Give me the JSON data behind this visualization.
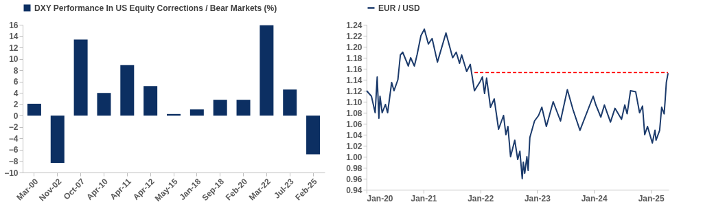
{
  "chart_data": [
    {
      "type": "bar",
      "categories": [
        "Mar-00",
        "Nov-02",
        "Oct-07",
        "Apr-10",
        "Apr-11",
        "Apr-12",
        "May-15",
        "Jan-18",
        "Sep-18",
        "Feb-20",
        "Mar-22",
        "Jul-23",
        "Feb-25"
      ],
      "series": [
        {
          "name": "DXY Performance In US Equity Corrections / Bear Markets (%)",
          "color": "#0c2f62",
          "values": [
            2.1,
            -8.3,
            13.4,
            4.0,
            8.9,
            5.2,
            0.3,
            1.1,
            2.8,
            2.8,
            15.9,
            4.6,
            -6.8
          ]
        }
      ],
      "ylim": [
        -10,
        16
      ],
      "yticks": [
        -10,
        -8,
        -6,
        -4,
        -2,
        0,
        2,
        4,
        6,
        8,
        10,
        12,
        14,
        16
      ],
      "grid": false,
      "legend": "top"
    },
    {
      "type": "line",
      "xlim": [
        "2020-01-01",
        "2025-04-25"
      ],
      "xticks": [
        {
          "value": "2020-01-01",
          "label": "Jan-20"
        },
        {
          "value": "2021-01-01",
          "label": "Jan-21"
        },
        {
          "value": "2022-01-01",
          "label": "Jan-22"
        },
        {
          "value": "2023-01-01",
          "label": "Jan-23"
        },
        {
          "value": "2024-01-01",
          "label": "Jan-24"
        },
        {
          "value": "2025-01-01",
          "label": "Jan-25"
        }
      ],
      "ylim": [
        0.94,
        1.24
      ],
      "yticks": [
        0.94,
        0.96,
        0.98,
        {
          "value": 1.0,
          "label": "1.00"
        },
        1.02,
        1.04,
        1.06,
        1.08,
        {
          "value": 1.1,
          "label": "1.10"
        },
        1.12,
        1.14,
        1.16,
        1.18,
        {
          "value": 1.2,
          "label": "1.20"
        },
        1.22,
        1.24
      ],
      "grid": false,
      "legend": "top",
      "series": [
        {
          "name": "EUR / USD",
          "color": "#1b3a6b",
          "line_style": "solid",
          "x": [
            "2020-01-01",
            "2020-02-01",
            "2020-02-25",
            "2020-03-09",
            "2020-03-20",
            "2020-03-27",
            "2020-04-10",
            "2020-05-01",
            "2020-05-15",
            "2020-06-10",
            "2020-06-25",
            "2020-07-20",
            "2020-08-05",
            "2020-08-20",
            "2020-09-25",
            "2020-10-10",
            "2020-11-03",
            "2020-11-20",
            "2020-12-15",
            "2021-01-06",
            "2021-02-01",
            "2021-02-25",
            "2021-03-31",
            "2021-05-25",
            "2021-07-07",
            "2021-07-30",
            "2021-08-20",
            "2021-09-03",
            "2021-10-05",
            "2021-10-28",
            "2021-11-24",
            "2021-12-31",
            "2022-01-14",
            "2022-01-28",
            "2022-02-10",
            "2022-03-07",
            "2022-03-31",
            "2022-04-28",
            "2022-05-30",
            "2022-06-14",
            "2022-06-27",
            "2022-07-14",
            "2022-08-10",
            "2022-08-29",
            "2022-09-12",
            "2022-09-27",
            "2022-10-04",
            "2022-10-13",
            "2022-10-27",
            "2022-11-04",
            "2022-11-15",
            "2022-12-15",
            "2023-01-10",
            "2023-01-31",
            "2023-03-01",
            "2023-04-14",
            "2023-05-31",
            "2023-07-14",
            "2023-08-20",
            "2023-10-03",
            "2023-12-27",
            "2024-01-12",
            "2024-02-14",
            "2024-03-08",
            "2024-04-16",
            "2024-05-15",
            "2024-06-26",
            "2024-07-17",
            "2024-08-01",
            "2024-08-23",
            "2024-09-25",
            "2024-10-20",
            "2024-11-08",
            "2024-11-22",
            "2024-12-10",
            "2025-01-10",
            "2025-01-27",
            "2025-02-03",
            "2025-02-26",
            "2025-03-11",
            "2025-03-27",
            "2025-04-03",
            "2025-04-10",
            "2025-04-21"
          ],
          "values": [
            1.12,
            1.11,
            1.08,
            1.145,
            1.07,
            1.11,
            1.08,
            1.095,
            1.08,
            1.135,
            1.12,
            1.14,
            1.185,
            1.19,
            1.165,
            1.18,
            1.165,
            1.185,
            1.22,
            1.232,
            1.205,
            1.215,
            1.172,
            1.225,
            1.18,
            1.19,
            1.17,
            1.185,
            1.155,
            1.168,
            1.12,
            1.137,
            1.145,
            1.115,
            1.143,
            1.09,
            1.105,
            1.05,
            1.075,
            1.04,
            1.055,
            1.0,
            1.03,
            0.995,
            1.01,
            0.96,
            0.99,
            0.97,
            1.0,
            0.975,
            1.035,
            1.065,
            1.075,
            1.09,
            1.055,
            1.1,
            1.065,
            1.122,
            1.085,
            1.048,
            1.11,
            1.095,
            1.072,
            1.094,
            1.063,
            1.088,
            1.068,
            1.094,
            1.078,
            1.12,
            1.118,
            1.08,
            1.092,
            1.04,
            1.055,
            1.025,
            1.048,
            1.03,
            1.048,
            1.09,
            1.078,
            1.105,
            1.135,
            1.152
          ]
        },
        {
          "color": "#ff0000",
          "line_style": "dashed",
          "x": [
            "2021-11-24",
            "2025-04-21"
          ],
          "values": [
            1.153,
            1.153
          ]
        }
      ]
    }
  ]
}
